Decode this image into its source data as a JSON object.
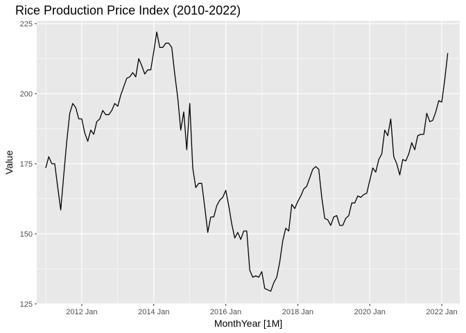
{
  "chart_data": {
    "type": "line",
    "title": "Rice Production Price Index (2010-2022)",
    "xlabel": "MonthYear [1M]",
    "ylabel": "Value",
    "ylim": [
      125,
      226
    ],
    "xlim": [
      "2010-10",
      "2022-07"
    ],
    "y_ticks": [
      125,
      150,
      175,
      200,
      225
    ],
    "x_ticks": [
      {
        "value": "2012-01",
        "label": "2012 Jan"
      },
      {
        "value": "2014-01",
        "label": "2014 Jan"
      },
      {
        "value": "2016-01",
        "label": "2016 Jan"
      },
      {
        "value": "2018-01",
        "label": "2018 Jan"
      },
      {
        "value": "2020-01",
        "label": "2020 Jan"
      },
      {
        "value": "2022-01",
        "label": "2022 Jan"
      }
    ],
    "grid": true,
    "legend": "none",
    "colors": {
      "panel_background": "#e8e8e8",
      "grid_line": "#ffffff",
      "series_line": "#000000",
      "axis_text": "#4d4d4d"
    },
    "series": [
      {
        "x": [
          "2011-01",
          "2011-02",
          "2011-03",
          "2011-04",
          "2011-05",
          "2011-06",
          "2011-07",
          "2011-08",
          "2011-09",
          "2011-10",
          "2011-11",
          "2011-12",
          "2012-01",
          "2012-02",
          "2012-03",
          "2012-04",
          "2012-05",
          "2012-06",
          "2012-07",
          "2012-08",
          "2012-09",
          "2012-10",
          "2012-11",
          "2012-12",
          "2013-01",
          "2013-02",
          "2013-03",
          "2013-04",
          "2013-05",
          "2013-06",
          "2013-07",
          "2013-08",
          "2013-09",
          "2013-10",
          "2013-11",
          "2013-12",
          "2014-01",
          "2014-02",
          "2014-03",
          "2014-04",
          "2014-05",
          "2014-06",
          "2014-07",
          "2014-08",
          "2014-09",
          "2014-10",
          "2014-11",
          "2014-12",
          "2015-01",
          "2015-02",
          "2015-03",
          "2015-04",
          "2015-05",
          "2015-06",
          "2015-07",
          "2015-08",
          "2015-09",
          "2015-10",
          "2015-11",
          "2015-12",
          "2016-01",
          "2016-02",
          "2016-03",
          "2016-04",
          "2016-05",
          "2016-06",
          "2016-07",
          "2016-08",
          "2016-09",
          "2016-10",
          "2016-11",
          "2016-12",
          "2017-01",
          "2017-02",
          "2017-03",
          "2017-04",
          "2017-05",
          "2017-06",
          "2017-07",
          "2017-08",
          "2017-09",
          "2017-10",
          "2017-11",
          "2017-12",
          "2018-01",
          "2018-02",
          "2018-03",
          "2018-04",
          "2018-05",
          "2018-06",
          "2018-07",
          "2018-08",
          "2018-09",
          "2018-10",
          "2018-11",
          "2018-12",
          "2019-01",
          "2019-02",
          "2019-03",
          "2019-04",
          "2019-05",
          "2019-06",
          "2019-07",
          "2019-08",
          "2019-09",
          "2019-10",
          "2019-11",
          "2019-12",
          "2020-01",
          "2020-02",
          "2020-03",
          "2020-04",
          "2020-05",
          "2020-06",
          "2020-07",
          "2020-08",
          "2020-09",
          "2020-10",
          "2020-11",
          "2020-12",
          "2021-01",
          "2021-02",
          "2021-03",
          "2021-04",
          "2021-05",
          "2021-06",
          "2021-07",
          "2021-08",
          "2021-09",
          "2021-10",
          "2021-11",
          "2021-12",
          "2022-01",
          "2022-02",
          "2022-03"
        ],
        "values": [
          173.5,
          177.5,
          175.0,
          175.0,
          166.5,
          158.5,
          171.0,
          183.0,
          193.0,
          196.5,
          195.0,
          191.0,
          191.0,
          186.0,
          183.0,
          187.0,
          185.5,
          190.0,
          191.0,
          194.0,
          192.5,
          192.5,
          194.0,
          196.5,
          195.5,
          199.5,
          202.5,
          205.5,
          206.0,
          207.5,
          206.0,
          212.5,
          210.0,
          207.0,
          208.5,
          208.5,
          215.0,
          222.0,
          216.5,
          216.5,
          218.0,
          218.0,
          216.5,
          207.0,
          198.5,
          187.0,
          193.5,
          180.0,
          196.5,
          173.5,
          166.5,
          168.0,
          168.0,
          159.5,
          150.5,
          156.0,
          156.0,
          160.0,
          162.0,
          163.0,
          165.5,
          160.0,
          153.5,
          148.5,
          150.5,
          148.0,
          151.0,
          151.0,
          137.0,
          134.5,
          135.0,
          134.5,
          136.5,
          130.5,
          130.0,
          129.5,
          132.5,
          134.5,
          140.0,
          147.5,
          152.0,
          151.0,
          160.5,
          159.0,
          161.5,
          163.5,
          166.0,
          167.0,
          170.0,
          173.0,
          174.0,
          173.0,
          163.0,
          155.5,
          155.0,
          153.0,
          156.0,
          156.5,
          153.0,
          153.0,
          155.5,
          156.5,
          161.0,
          161.0,
          163.5,
          163.0,
          164.0,
          164.5,
          169.0,
          173.5,
          172.0,
          176.5,
          178.5,
          187.0,
          185.0,
          191.0,
          177.5,
          175.0,
          171.0,
          176.5,
          176.0,
          178.5,
          182.5,
          180.0,
          185.0,
          185.5,
          185.5,
          193.0,
          190.0,
          190.5,
          193.5,
          197.5,
          197.0,
          205.0,
          214.5
        ]
      }
    ]
  }
}
